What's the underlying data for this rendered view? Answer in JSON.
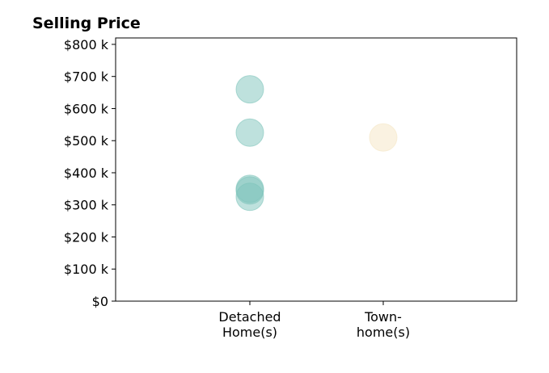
{
  "chart_data": {
    "type": "scatter",
    "title": "Selling Price",
    "xlabel": "",
    "ylabel": "",
    "categories": [
      [
        "Detached",
        "Home(s)"
      ],
      [
        "Town-",
        "home(s)"
      ]
    ],
    "ylim": [
      0,
      820000
    ],
    "yticks": [
      0,
      100000,
      200000,
      300000,
      400000,
      500000,
      600000,
      700000,
      800000
    ],
    "ytick_labels": [
      "$0",
      "$100 k",
      "$200 k",
      "$300 k",
      "$400 k",
      "$500 k",
      "$600 k",
      "$700 k",
      "$800 k"
    ],
    "grid": false,
    "series": [
      {
        "category": 0,
        "color": "#7ec4bb",
        "values": [
          660000,
          525000,
          350000,
          345000,
          325000
        ]
      },
      {
        "category": 1,
        "color": "#f5e6c4",
        "values": [
          510000
        ]
      }
    ]
  }
}
